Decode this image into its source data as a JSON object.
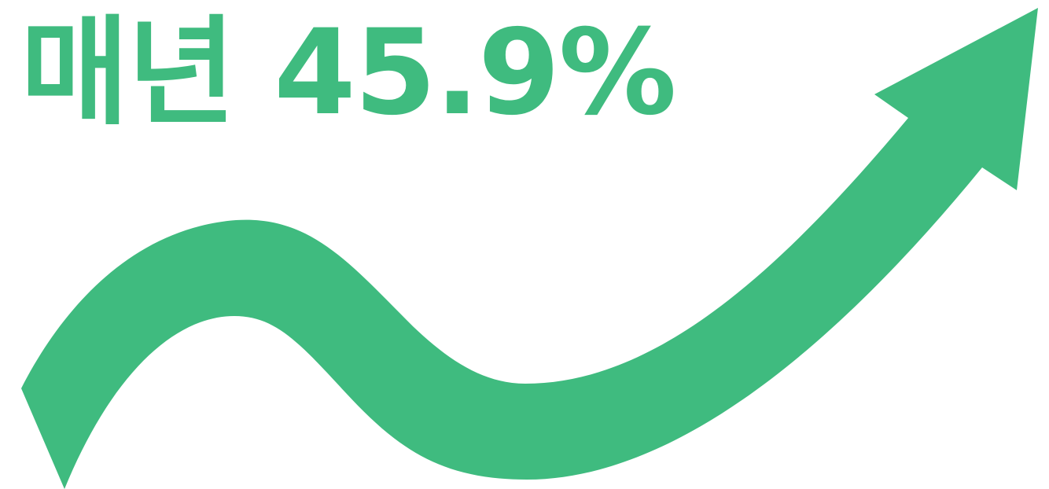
{
  "headline": {
    "text": "매년 45.9%"
  },
  "graphic": {
    "icon": "rising-wavy-arrow-icon",
    "direction": "up-right"
  },
  "colors": {
    "accent": "#3FBB7F",
    "background": "#FFFFFF"
  }
}
